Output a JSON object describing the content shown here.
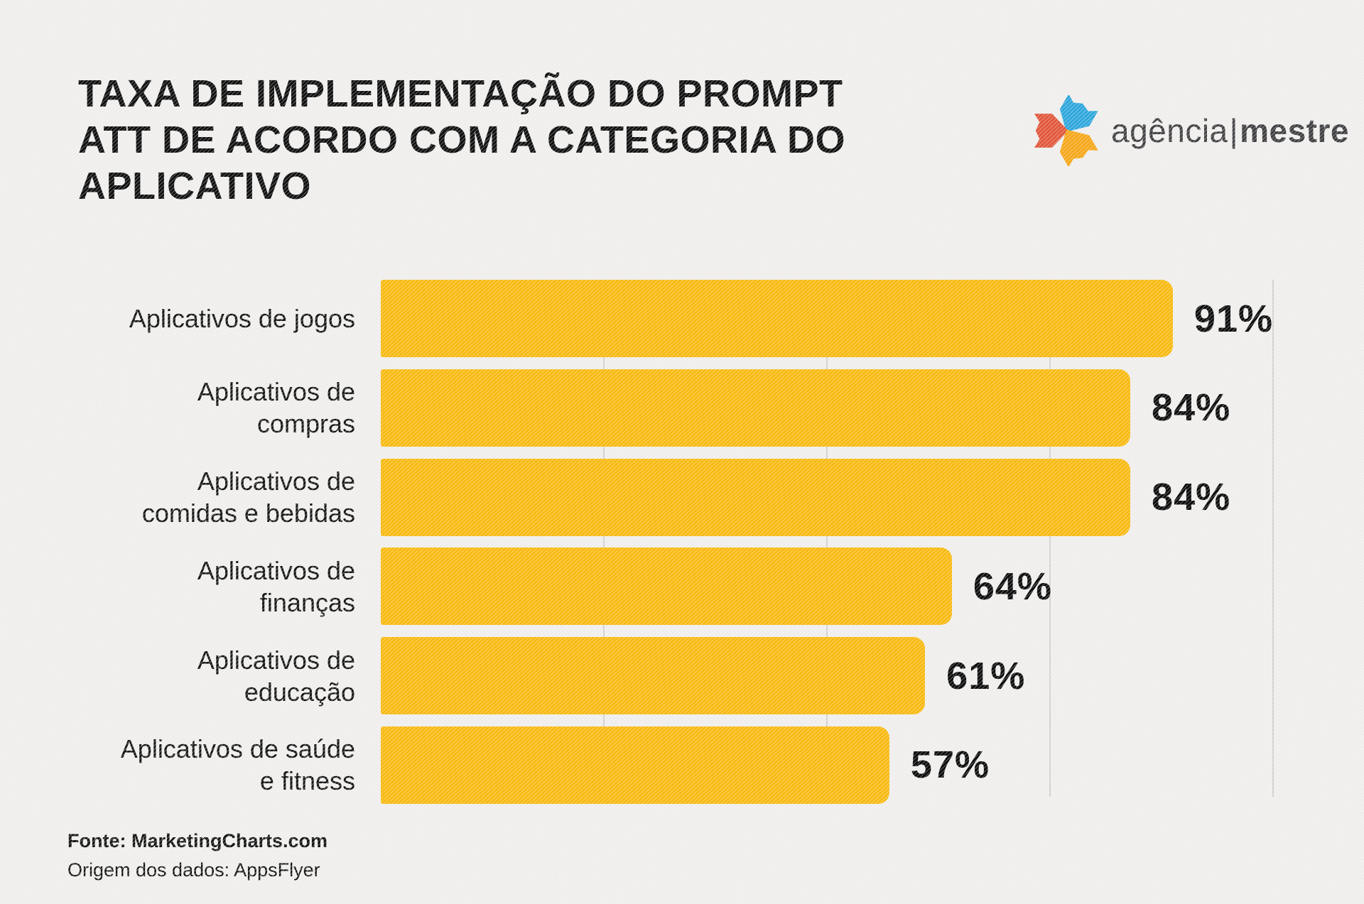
{
  "header": {
    "title_lines": [
      "TAXA DE IMPLEMENTAÇÃO DO PROMPT",
      "ATT DE ACORDO COM A CATEGORIA DO",
      "APLICATIVO"
    ]
  },
  "logo": {
    "word_light": "agência",
    "separator": "|",
    "word_bold": "mestre",
    "icon": "three-arrows-star-icon"
  },
  "chart_data": {
    "type": "bar",
    "orientation": "horizontal",
    "title": "TAXA DE IMPLEMENTAÇÃO DO PROMPT ATT DE ACORDO COM A CATEGORIA DO APLICATIVO",
    "categories": [
      "Aplicativos de jogos",
      "Aplicativos de compras",
      "Aplicativos de comidas e bebidas",
      "Aplicativos de finanças",
      "Aplicativos de educação",
      "Aplicativos de saúde e fitness"
    ],
    "values": [
      91,
      84,
      84,
      64,
      61,
      57
    ],
    "value_labels": [
      "91%",
      "84%",
      "84%",
      "64%",
      "61%",
      "57%"
    ],
    "xlim": [
      0,
      100
    ],
    "gridlines_pct": [
      25,
      50,
      75,
      100
    ],
    "grid": "vertical-light-gray",
    "legend": "none",
    "bar_color": "#F9BB13",
    "bars": [
      {
        "label_lines": [
          "Aplicativos de jogos"
        ],
        "value": 91,
        "display": "91%"
      },
      {
        "label_lines": [
          "Aplicativos de",
          "compras"
        ],
        "value": 84,
        "display": "84%"
      },
      {
        "label_lines": [
          "Aplicativos de",
          "comidas e bebidas"
        ],
        "value": 84,
        "display": "84%"
      },
      {
        "label_lines": [
          "Aplicativos de",
          "finanças"
        ],
        "value": 64,
        "display": "64%"
      },
      {
        "label_lines": [
          "Aplicativos de",
          "educação"
        ],
        "value": 61,
        "display": "61%"
      },
      {
        "label_lines": [
          "Aplicativos de saúde",
          "e fitness"
        ],
        "value": 57,
        "display": "57%"
      }
    ]
  },
  "footer": {
    "source": "Fonte: MarketingCharts.com",
    "data_origin": "Origem dos dados: AppsFlyer"
  },
  "colors": {
    "background": "#F0EFED",
    "bar": "#F9BB13",
    "text": "#111111",
    "gridline": "#D2D1CE",
    "logo_text": "#414042",
    "logo_blue": "#2FA8DC",
    "logo_red": "#E2583C",
    "logo_yellow": "#F7A81B"
  }
}
